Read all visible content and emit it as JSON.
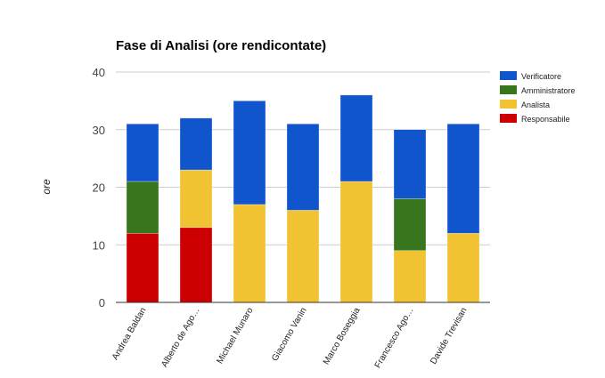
{
  "chart_data": {
    "type": "bar",
    "stacked": true,
    "title": "Fase di Analisi (ore rendicontate)",
    "xlabel": "",
    "ylabel": "ore",
    "ylim": [
      0,
      40
    ],
    "yticks": [
      0,
      10,
      20,
      30,
      40
    ],
    "grid": true,
    "legend_position": "right",
    "categories": [
      "Andrea Baldan",
      "Alberto de Ago…",
      "Michael Munaro",
      "Giacomo Vanin",
      "Marco Boseggia",
      "Francesco Ago…",
      "Davide Trevisan"
    ],
    "series": [
      {
        "name": "Responsabile",
        "color": "#cc0000",
        "values": [
          12,
          13,
          0,
          0,
          0,
          0,
          0
        ]
      },
      {
        "name": "Analista",
        "color": "#f1c232",
        "values": [
          0,
          10,
          17,
          16,
          21,
          9,
          12
        ]
      },
      {
        "name": "Amministratore",
        "color": "#38761d",
        "values": [
          9,
          0,
          0,
          0,
          0,
          9,
          0
        ]
      },
      {
        "name": "Verificatore",
        "color": "#1155cc",
        "values": [
          10,
          9,
          18,
          15,
          15,
          12,
          19
        ]
      }
    ],
    "legend_order": [
      "Verificatore",
      "Amministratore",
      "Analista",
      "Responsabile"
    ]
  }
}
